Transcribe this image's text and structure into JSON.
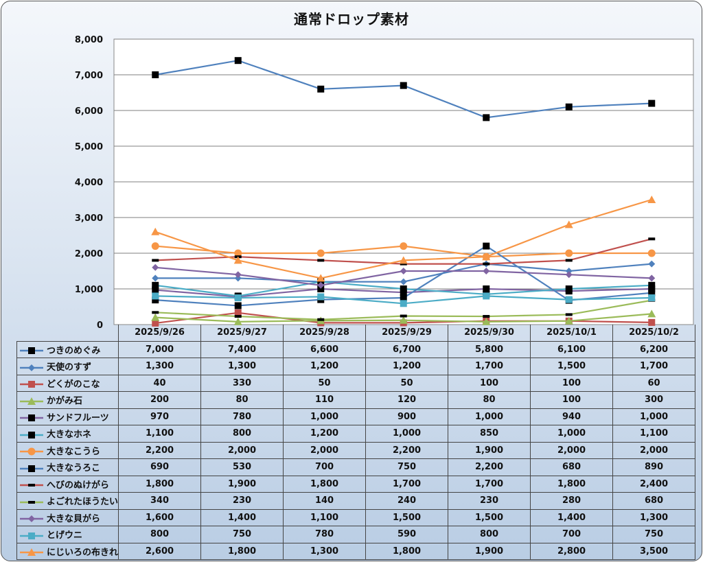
{
  "chart_data": {
    "type": "line",
    "title": "通常ドロップ素材",
    "xlabel": "",
    "ylabel": "",
    "ylim": [
      0,
      8000
    ],
    "yticks": [
      0,
      1000,
      2000,
      3000,
      4000,
      5000,
      6000,
      7000,
      8000
    ],
    "ytick_labels": [
      "0",
      "1,000",
      "2,000",
      "3,000",
      "4,000",
      "5,000",
      "6,000",
      "7,000",
      "8,000"
    ],
    "grid": true,
    "legend_placement": "data-table-left",
    "categories": [
      "2025/9/26",
      "2025/9/27",
      "2025/9/28",
      "2025/9/29",
      "2025/9/30",
      "2025/10/1",
      "2025/10/2"
    ],
    "series": [
      {
        "name": "つきのめぐみ",
        "color": "#4f81bd",
        "marker": "square-black",
        "values": [
          7000,
          7400,
          6600,
          6700,
          5800,
          6100,
          6200
        ],
        "labels": [
          "7,000",
          "7,400",
          "6,600",
          "6,700",
          "5,800",
          "6,100",
          "6,200"
        ]
      },
      {
        "name": "天使のすず",
        "color": "#4f81bd",
        "marker": "diamond",
        "values": [
          1300,
          1300,
          1200,
          1200,
          1700,
          1500,
          1700
        ],
        "labels": [
          "1,300",
          "1,300",
          "1,200",
          "1,200",
          "1,700",
          "1,500",
          "1,700"
        ]
      },
      {
        "name": "どくがのこな",
        "color": "#c0504d",
        "marker": "square",
        "values": [
          40,
          330,
          50,
          50,
          100,
          100,
          60
        ],
        "labels": [
          "40",
          "330",
          "50",
          "50",
          "100",
          "100",
          "60"
        ]
      },
      {
        "name": "かがみ石",
        "color": "#9bbb59",
        "marker": "triangle",
        "values": [
          200,
          80,
          110,
          120,
          80,
          100,
          300
        ],
        "labels": [
          "200",
          "80",
          "110",
          "120",
          "80",
          "100",
          "300"
        ]
      },
      {
        "name": "サンドフルーツ",
        "color": "#8064a2",
        "marker": "square-black",
        "values": [
          970,
          780,
          1000,
          900,
          1000,
          940,
          1000
        ],
        "labels": [
          "970",
          "780",
          "1,000",
          "900",
          "1,000",
          "940",
          "1,000"
        ]
      },
      {
        "name": "大きなホネ",
        "color": "#4bacc6",
        "marker": "square-black",
        "values": [
          1100,
          800,
          1200,
          1000,
          850,
          1000,
          1100
        ],
        "labels": [
          "1,100",
          "800",
          "1,200",
          "1,000",
          "850",
          "1,000",
          "1,100"
        ]
      },
      {
        "name": "大きなこうら",
        "color": "#f79646",
        "marker": "circle",
        "values": [
          2200,
          2000,
          2000,
          2200,
          1900,
          2000,
          2000
        ],
        "labels": [
          "2,200",
          "2,000",
          "2,000",
          "2,200",
          "1,900",
          "2,000",
          "2,000"
        ]
      },
      {
        "name": "大きなうろこ",
        "color": "#4f81bd",
        "marker": "square-black",
        "values": [
          690,
          530,
          700,
          750,
          2200,
          680,
          890
        ],
        "labels": [
          "690",
          "530",
          "700",
          "750",
          "2,200",
          "680",
          "890"
        ]
      },
      {
        "name": "へびのぬけがら",
        "color": "#c0504d",
        "marker": "dash-black",
        "values": [
          1800,
          1900,
          1800,
          1700,
          1700,
          1800,
          2400
        ],
        "labels": [
          "1,800",
          "1,900",
          "1,800",
          "1,700",
          "1,700",
          "1,800",
          "2,400"
        ]
      },
      {
        "name": "よごれたほうたい",
        "color": "#9bbb59",
        "marker": "dash-black",
        "values": [
          340,
          230,
          140,
          240,
          230,
          280,
          680
        ],
        "labels": [
          "340",
          "230",
          "140",
          "240",
          "230",
          "280",
          "680"
        ]
      },
      {
        "name": "大きな貝がら",
        "color": "#8064a2",
        "marker": "diamond",
        "values": [
          1600,
          1400,
          1100,
          1500,
          1500,
          1400,
          1300
        ],
        "labels": [
          "1,600",
          "1,400",
          "1,100",
          "1,500",
          "1,500",
          "1,400",
          "1,300"
        ]
      },
      {
        "name": "とげウニ",
        "color": "#4bacc6",
        "marker": "square",
        "values": [
          800,
          750,
          780,
          590,
          800,
          700,
          750
        ],
        "labels": [
          "800",
          "750",
          "780",
          "590",
          "800",
          "700",
          "750"
        ]
      },
      {
        "name": "にじいろの布きれ",
        "color": "#f79646",
        "marker": "triangle",
        "values": [
          2600,
          1800,
          1300,
          1800,
          1900,
          2800,
          3500
        ],
        "labels": [
          "2,600",
          "1,800",
          "1,300",
          "1,800",
          "1,900",
          "2,800",
          "3,500"
        ]
      }
    ]
  }
}
